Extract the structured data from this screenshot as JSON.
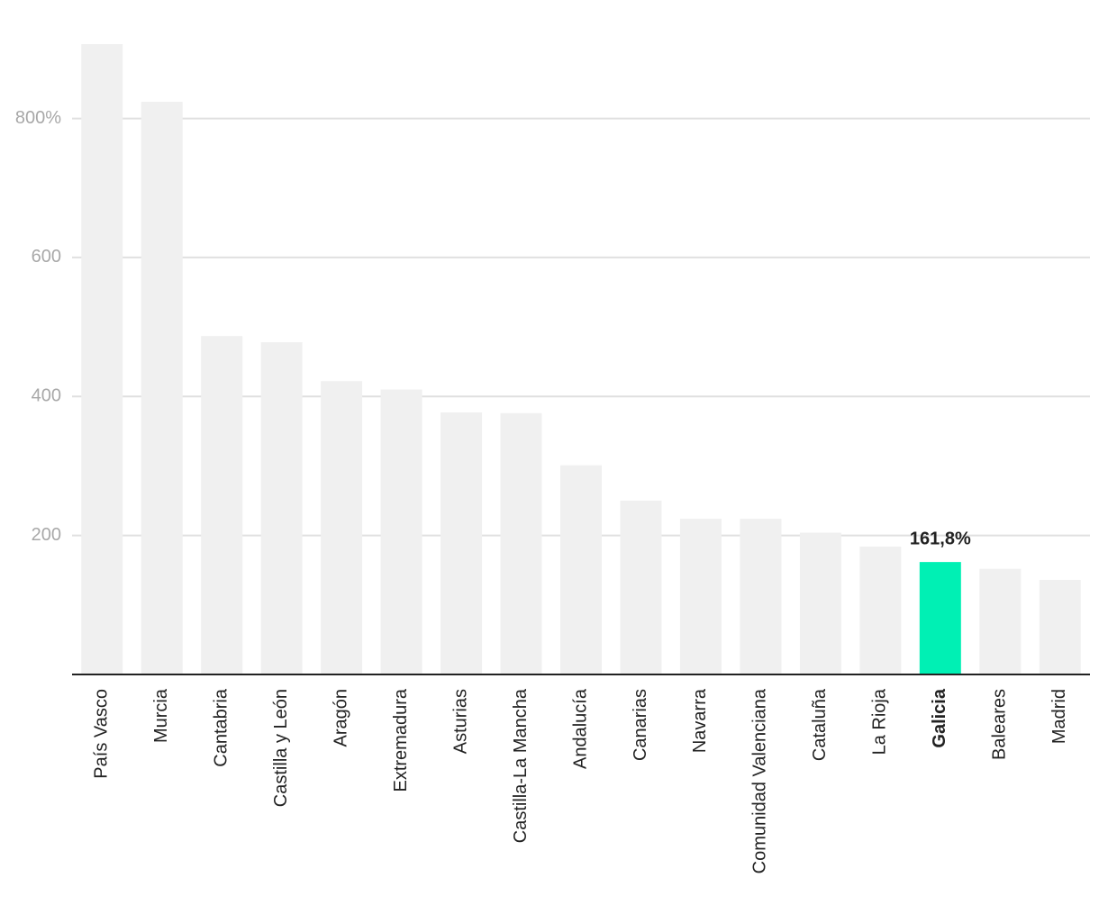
{
  "chart_data": {
    "type": "bar",
    "categories": [
      "País Vasco",
      "Murcia",
      "Cantabria",
      "Castilla y León",
      "Aragón",
      "Extremadura",
      "Asturias",
      "Castilla-La Mancha",
      "Andalucía",
      "Canarias",
      "Navarra",
      "Comunidad Valenciana",
      "Cataluña",
      "La Rioja",
      "Galicia",
      "Baleares",
      "Madrid"
    ],
    "values": [
      907,
      824,
      487,
      478,
      422,
      410,
      377,
      376,
      301,
      250,
      224,
      224,
      204,
      184,
      161.8,
      152,
      136
    ],
    "value_labels": [
      null,
      null,
      null,
      null,
      null,
      null,
      null,
      null,
      null,
      null,
      null,
      null,
      null,
      null,
      "161,8%",
      null,
      null
    ],
    "colors": [
      "#f0f0f0",
      "#f0f0f0",
      "#f0f0f0",
      "#f0f0f0",
      "#f0f0f0",
      "#f0f0f0",
      "#f0f0f0",
      "#f0f0f0",
      "#f0f0f0",
      "#f0f0f0",
      "#f0f0f0",
      "#f0f0f0",
      "#f0f0f0",
      "#f0f0f0",
      "#00f0b4",
      "#f0f0f0",
      "#f0f0f0"
    ],
    "ylim": [
      0,
      907
    ],
    "yticks": [
      200,
      400,
      600,
      {
        "value": 800,
        "label": "800%"
      }
    ],
    "grid": true
  }
}
